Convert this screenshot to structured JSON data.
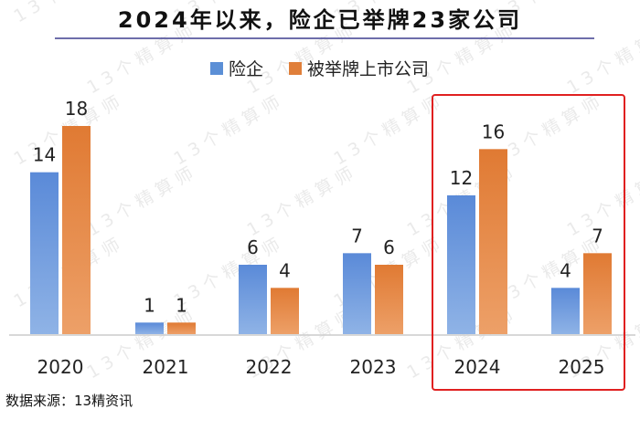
{
  "chart_data": {
    "type": "bar",
    "title": "2024年以来，险企已举牌23家公司",
    "categories": [
      "2020",
      "2021",
      "2022",
      "2023",
      "2024",
      "2025"
    ],
    "series": [
      {
        "name": "险企",
        "values": [
          14,
          1,
          6,
          7,
          12,
          4
        ]
      },
      {
        "name": "被举牌上市公司",
        "values": [
          18,
          1,
          4,
          6,
          16,
          7
        ]
      }
    ],
    "xlabel": "",
    "ylabel": "",
    "ylim": [
      0,
      18
    ],
    "grid": false,
    "legend_position": "top-center",
    "highlighted_categories": [
      "2024",
      "2025"
    ]
  },
  "source_note": "数据来源：13精资讯",
  "watermark_text": "13个精算师",
  "colors": {
    "series_1": "#5b8fd6",
    "series_2": "#e07f3a",
    "highlight_box": "#e02020",
    "axis": "#cccccc",
    "title_rule": "#3f3f8f"
  }
}
